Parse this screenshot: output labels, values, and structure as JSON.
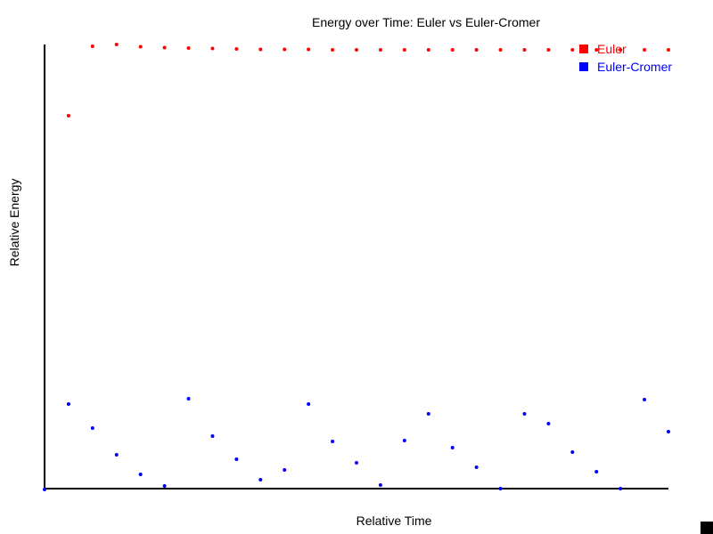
{
  "chart_data": {
    "type": "scatter",
    "title": "Energy over Time: Euler vs Euler-Cromer",
    "xlabel": "Relative Time",
    "ylabel": "Relative Energy",
    "x": [
      0,
      1,
      2,
      3,
      4,
      5,
      6,
      7,
      8,
      9,
      10,
      11,
      12,
      13,
      14,
      15,
      16,
      17,
      18,
      19,
      20,
      21,
      22,
      23,
      24,
      25,
      26
    ],
    "xlim": [
      0,
      26
    ],
    "ylim": [
      0,
      1
    ],
    "grid": false,
    "legend_position": "top-right",
    "series": [
      {
        "name": "Euler",
        "color": "#ff0000",
        "values": [
          null,
          0.84,
          0.996,
          1.0,
          0.995,
          0.993,
          0.992,
          0.991,
          0.99,
          0.989,
          0.989,
          0.989,
          0.988,
          0.988,
          0.988,
          0.988,
          0.988,
          0.988,
          0.988,
          0.988,
          0.988,
          0.988,
          0.988,
          0.988,
          0.988,
          0.988,
          0.988
        ]
      },
      {
        "name": "Euler-Cromer",
        "color": "#0000ff",
        "values": [
          0.0,
          0.192,
          0.138,
          0.078,
          0.034,
          0.008,
          0.204,
          0.12,
          0.068,
          0.022,
          0.044,
          0.192,
          0.108,
          0.06,
          0.01,
          0.11,
          0.17,
          0.094,
          0.05,
          0.002,
          0.17,
          0.148,
          0.084,
          0.04,
          0.002,
          0.202,
          0.13
        ]
      }
    ]
  }
}
